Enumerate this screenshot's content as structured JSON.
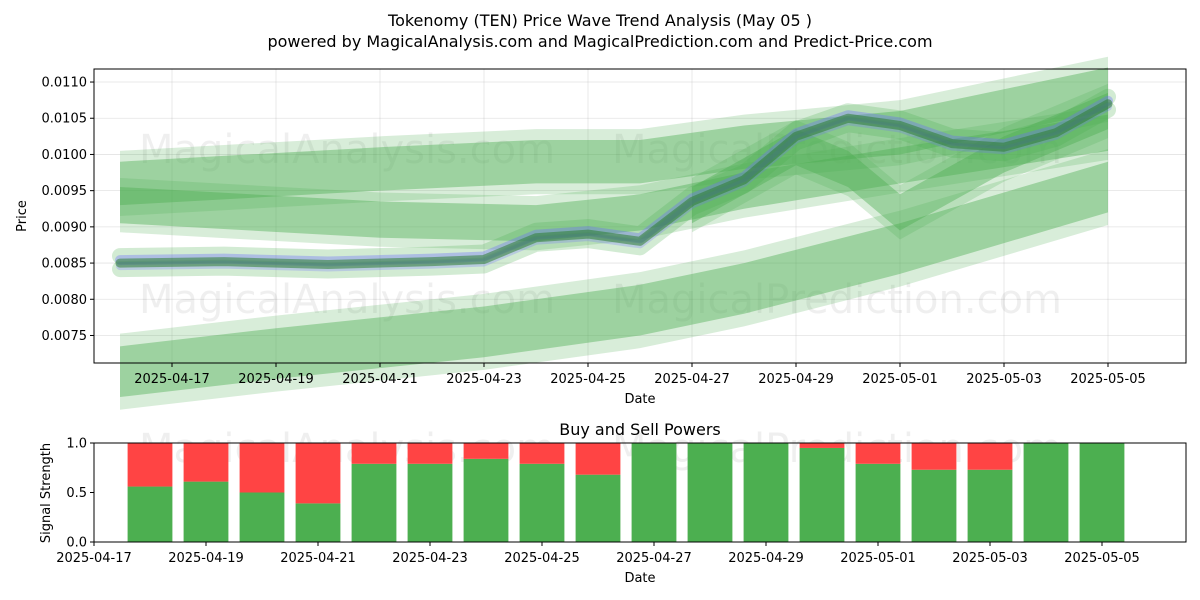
{
  "figure": {
    "title_line1": "Tokenomy (TEN) Price Wave Trend Analysis (May 05 )",
    "title_line2": "powered by MagicalAnalysis.com and MagicalPrediction.com and Predict-Price.com",
    "watermarks": [
      "MagicalAnalysis.com",
      "MagicalPrediction.com"
    ]
  },
  "chart_data": [
    {
      "type": "area",
      "name": "price-wave-trend",
      "xlabel": "Date",
      "ylabel": "Price",
      "xlim": [
        "2025-04-15T12:00",
        "2025-05-06T12:00"
      ],
      "ylim": [
        0.00712,
        0.01118
      ],
      "x_tick_labels": [
        "2025-04-17",
        "2025-04-19",
        "2025-04-21",
        "2025-04-23",
        "2025-04-25",
        "2025-04-27",
        "2025-04-29",
        "2025-05-01",
        "2025-05-03",
        "2025-05-05"
      ],
      "y_tick_labels": [
        "0.0075",
        "0.0080",
        "0.0085",
        "0.0090",
        "0.0095",
        "0.0100",
        "0.0105",
        "0.0110"
      ],
      "grid": true,
      "colors": {
        "wave": "#2e7d32",
        "band": "#4caf50",
        "blue": "#6b6bff"
      },
      "price_path": {
        "x": [
          "2025-04-16",
          "2025-04-18",
          "2025-04-20",
          "2025-04-22",
          "2025-04-23",
          "2025-04-24",
          "2025-04-25",
          "2025-04-26",
          "2025-04-27",
          "2025-04-28",
          "2025-04-29",
          "2025-04-30",
          "2025-05-01",
          "2025-05-02",
          "2025-05-03",
          "2025-05-04",
          "2025-05-05"
        ],
        "y": [
          0.0085,
          0.00852,
          0.00848,
          0.00852,
          0.00855,
          0.00885,
          0.0089,
          0.0088,
          0.00935,
          0.00965,
          0.01025,
          0.0105,
          0.0104,
          0.01015,
          0.0101,
          0.0103,
          0.0107
        ]
      },
      "bands": [
        {
          "x": [
            "2025-04-16",
            "2025-04-21",
            "2025-04-24",
            "2025-04-26",
            "2025-04-28",
            "2025-05-01",
            "2025-05-05"
          ],
          "y": [
            0.0096,
            0.0098,
            0.0099,
            0.0099,
            0.0101,
            0.0103,
            0.0109
          ],
          "width": 0.0006
        },
        {
          "x": [
            "2025-04-16",
            "2025-04-21",
            "2025-04-24",
            "2025-04-26",
            "2025-04-28",
            "2025-05-01",
            "2025-05-05"
          ],
          "y": [
            0.0093,
            0.0091,
            0.00905,
            0.0092,
            0.0095,
            0.00985,
            0.0103
          ],
          "width": 0.0005
        },
        {
          "x": [
            "2025-04-16",
            "2025-04-19",
            "2025-04-23",
            "2025-04-26",
            "2025-04-28",
            "2025-05-01",
            "2025-05-05"
          ],
          "y": [
            0.007,
            0.00725,
            0.00755,
            0.00785,
            0.00815,
            0.0087,
            0.00955
          ],
          "width": 0.0007
        },
        {
          "x": [
            "2025-04-27",
            "2025-04-29",
            "2025-04-30",
            "2025-05-01",
            "2025-05-02",
            "2025-05-03",
            "2025-05-05"
          ],
          "y": [
            0.0093,
            0.0101,
            0.0098,
            0.0092,
            0.0096,
            0.01,
            0.0106
          ],
          "width": 0.0005
        }
      ]
    },
    {
      "type": "bar",
      "name": "buy-and-sell-powers",
      "title": "Buy and Sell Powers",
      "xlabel": "Date",
      "ylabel": "Signal Strength",
      "xlim": [
        "2025-04-17T00:00",
        "2025-05-06T12:00"
      ],
      "ylim": [
        0,
        1
      ],
      "x_tick_labels": [
        "2025-04-17",
        "2025-04-19",
        "2025-04-21",
        "2025-04-23",
        "2025-04-25",
        "2025-04-27",
        "2025-04-29",
        "2025-05-01",
        "2025-05-03",
        "2025-05-05"
      ],
      "y_tick_labels": [
        "0.0",
        "0.5",
        "1.0"
      ],
      "colors": {
        "buy": "#4caf50",
        "sell": "#ff4444"
      },
      "categories": [
        "2025-04-18",
        "2025-04-19",
        "2025-04-20",
        "2025-04-21",
        "2025-04-22",
        "2025-04-23",
        "2025-04-24",
        "2025-04-25",
        "2025-04-26",
        "2025-04-27",
        "2025-04-28",
        "2025-04-29",
        "2025-04-30",
        "2025-05-01",
        "2025-05-02",
        "2025-05-03",
        "2025-05-04",
        "2025-05-05"
      ],
      "series": [
        {
          "values": [
            0.56,
            0.61,
            0.5,
            0.39,
            0.79,
            0.79,
            0.84,
            0.79,
            0.68,
            1.0,
            1.0,
            1.0,
            0.95,
            0.79,
            0.73,
            0.73,
            1.0,
            1.0
          ]
        },
        {
          "values": [
            0.44,
            0.39,
            0.5,
            0.61,
            0.21,
            0.21,
            0.16,
            0.21,
            0.32,
            0.0,
            0.0,
            0.0,
            0.05,
            0.21,
            0.27,
            0.27,
            0.0,
            0.0
          ]
        }
      ]
    }
  ]
}
